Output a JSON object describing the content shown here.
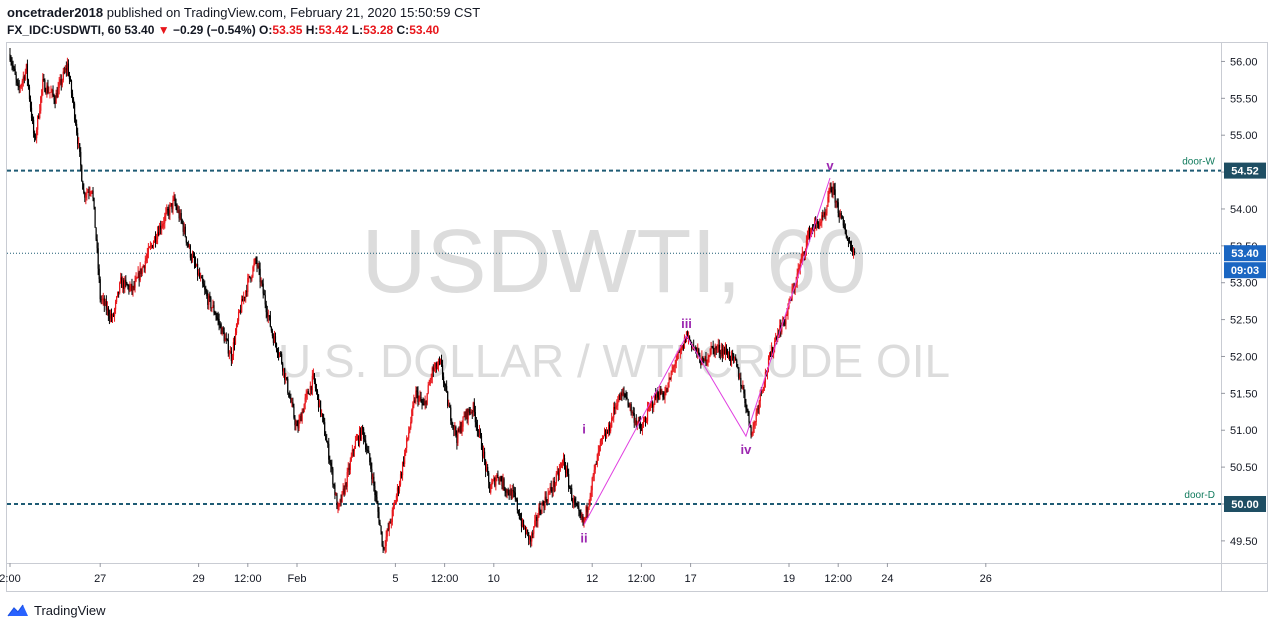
{
  "header": {
    "author": "oncetrader2018",
    "published": "published on TradingView.com, February 21, 2020 15:50:59 CST",
    "symbol": "FX_IDC:USDWTI, 60",
    "last": "53.40",
    "arrow": "▼",
    "change": "−0.29 (−0.54%)",
    "o_label": "O:",
    "o_value": "53.35",
    "h_label": "H:",
    "h_value": "53.42",
    "l_label": "L:",
    "l_value": "53.28",
    "c_label": "C:",
    "c_value": "53.40"
  },
  "watermark": {
    "symbol": "USDWTI, 60",
    "description": "U.S. DOLLAR / WTI CRUDE OIL"
  },
  "footer": {
    "brand": "TradingView"
  },
  "colors": {
    "up": "#e8161b",
    "down": "#000000",
    "level": "#1e5b74",
    "wave": "#e040e0",
    "wave_label": "#9c27b0",
    "price_tag": "#1a66c2"
  },
  "chart_data": {
    "type": "candlestick",
    "ylim": [
      49.2,
      56.25
    ],
    "yticks": [
      "56.00",
      "55.50",
      "55.00",
      "54.50",
      "54.00",
      "53.50",
      "53.00",
      "52.50",
      "52.00",
      "51.50",
      "51.00",
      "50.50",
      "50.00",
      "49.50"
    ],
    "xticks": [
      {
        "t": 0,
        "label": "2:00"
      },
      {
        "t": 22,
        "label": "27"
      },
      {
        "t": 46,
        "label": "29"
      },
      {
        "t": 58,
        "label": "12:00"
      },
      {
        "t": 70,
        "label": "Feb"
      },
      {
        "t": 94,
        "label": "5"
      },
      {
        "t": 106,
        "label": "12:00"
      },
      {
        "t": 118,
        "label": "10"
      },
      {
        "t": 142,
        "label": "12"
      },
      {
        "t": 154,
        "label": "12:00"
      },
      {
        "t": 166,
        "label": "17"
      },
      {
        "t": 190,
        "label": "19"
      },
      {
        "t": 202,
        "label": "12:00"
      },
      {
        "t": 214,
        "label": "24"
      },
      {
        "t": 238,
        "label": "26"
      }
    ],
    "levels": [
      {
        "name": "door-W",
        "value": 54.52,
        "tag": "54.52"
      },
      {
        "name": "door-D",
        "value": 50.0,
        "tag": "50.00"
      }
    ],
    "last_price": {
      "value": 53.4,
      "tag": "53.40",
      "countdown": "09:03"
    },
    "anchors": [
      [
        0,
        56.1
      ],
      [
        2,
        55.6
      ],
      [
        4,
        55.9
      ],
      [
        6,
        54.9
      ],
      [
        8,
        55.7
      ],
      [
        11,
        55.5
      ],
      [
        14,
        55.95
      ],
      [
        16,
        55.2
      ],
      [
        18,
        54.2
      ],
      [
        20,
        54.3
      ],
      [
        21,
        53.6
      ],
      [
        22,
        52.8
      ],
      [
        25,
        52.5
      ],
      [
        27,
        53.0
      ],
      [
        30,
        52.9
      ],
      [
        33,
        53.3
      ],
      [
        36,
        53.7
      ],
      [
        38,
        53.9
      ],
      [
        40,
        54.1
      ],
      [
        42,
        53.8
      ],
      [
        44,
        53.4
      ],
      [
        46,
        53.1
      ],
      [
        48,
        52.8
      ],
      [
        50,
        52.6
      ],
      [
        52,
        52.3
      ],
      [
        54,
        52.0
      ],
      [
        56,
        52.6
      ],
      [
        58,
        53.0
      ],
      [
        60,
        53.3
      ],
      [
        62,
        52.8
      ],
      [
        64,
        52.3
      ],
      [
        66,
        52.0
      ],
      [
        68,
        51.5
      ],
      [
        70,
        51.0
      ],
      [
        72,
        51.4
      ],
      [
        74,
        51.7
      ],
      [
        76,
        51.2
      ],
      [
        78,
        50.6
      ],
      [
        80,
        49.9
      ],
      [
        82,
        50.3
      ],
      [
        84,
        50.8
      ],
      [
        86,
        51.0
      ],
      [
        88,
        50.5
      ],
      [
        90,
        49.8
      ],
      [
        91,
        49.4
      ],
      [
        93,
        49.8
      ],
      [
        95,
        50.3
      ],
      [
        97,
        50.9
      ],
      [
        99,
        51.5
      ],
      [
        101,
        51.3
      ],
      [
        103,
        51.8
      ],
      [
        105,
        51.9
      ],
      [
        107,
        51.3
      ],
      [
        109,
        50.9
      ],
      [
        111,
        51.2
      ],
      [
        113,
        51.3
      ],
      [
        115,
        50.8
      ],
      [
        117,
        50.2
      ],
      [
        119,
        50.4
      ],
      [
        121,
        50.2
      ],
      [
        123,
        50.1
      ],
      [
        125,
        49.7
      ],
      [
        127,
        49.5
      ],
      [
        129,
        49.9
      ],
      [
        131,
        50.1
      ],
      [
        133,
        50.3
      ],
      [
        135,
        50.6
      ],
      [
        137,
        50.1
      ],
      [
        139,
        49.8
      ],
      [
        140,
        49.75
      ],
      [
        142,
        50.3
      ],
      [
        144,
        50.8
      ],
      [
        146,
        51.0
      ],
      [
        148,
        51.4
      ],
      [
        150,
        51.5
      ],
      [
        152,
        51.2
      ],
      [
        154,
        51.0
      ],
      [
        156,
        51.3
      ],
      [
        158,
        51.5
      ],
      [
        160,
        51.5
      ],
      [
        162,
        51.9
      ],
      [
        164,
        52.1
      ],
      [
        165,
        52.3
      ],
      [
        167,
        52.1
      ],
      [
        169,
        51.9
      ],
      [
        171,
        52.1
      ],
      [
        173,
        52.1
      ],
      [
        175,
        52.05
      ],
      [
        177,
        51.9
      ],
      [
        179,
        51.5
      ],
      [
        180,
        51.2
      ],
      [
        181,
        50.95
      ],
      [
        183,
        51.5
      ],
      [
        185,
        51.9
      ],
      [
        187,
        52.3
      ],
      [
        189,
        52.5
      ],
      [
        191,
        52.9
      ],
      [
        193,
        53.3
      ],
      [
        195,
        53.7
      ],
      [
        197,
        53.8
      ],
      [
        199,
        53.9
      ],
      [
        200,
        54.3
      ],
      [
        201,
        54.2
      ],
      [
        203,
        53.8
      ],
      [
        205,
        53.5
      ],
      [
        206,
        53.4
      ]
    ],
    "wave": [
      [
        140,
        49.72
      ],
      [
        165,
        52.28
      ],
      [
        179.5,
        50.92
      ],
      [
        200,
        54.42
      ]
    ],
    "wave_labels": [
      {
        "label": "i",
        "t": 140,
        "value": 50.85,
        "pos": "above"
      },
      {
        "label": "ii",
        "t": 140,
        "value": 49.72,
        "pos": "below"
      },
      {
        "label": "iii",
        "t": 165,
        "value": 52.28,
        "pos": "above"
      },
      {
        "label": "iv",
        "t": 179.5,
        "value": 50.92,
        "pos": "below"
      },
      {
        "label": "v",
        "t": 200,
        "value": 54.42,
        "pos": "above"
      }
    ]
  }
}
